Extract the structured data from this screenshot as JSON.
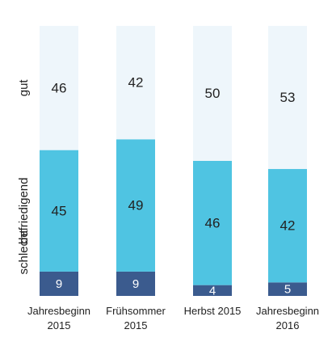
{
  "chart_data": {
    "type": "stacked_bar",
    "categories": [
      "Jahresbeginn\n2015",
      "Frühsommer\n2015",
      "Herbst 2015",
      "Jahresbeginn\n2016"
    ],
    "series": [
      {
        "name": "schlecht",
        "color": "#3b5b8e",
        "values": [
          9,
          9,
          4,
          5
        ]
      },
      {
        "name": "befriedigend",
        "color": "#4fc4e2",
        "values": [
          45,
          49,
          46,
          42
        ]
      },
      {
        "name": "gut",
        "color": "#eef6fb",
        "values": [
          46,
          42,
          50,
          53
        ]
      }
    ],
    "ylim": [
      0,
      100
    ]
  }
}
